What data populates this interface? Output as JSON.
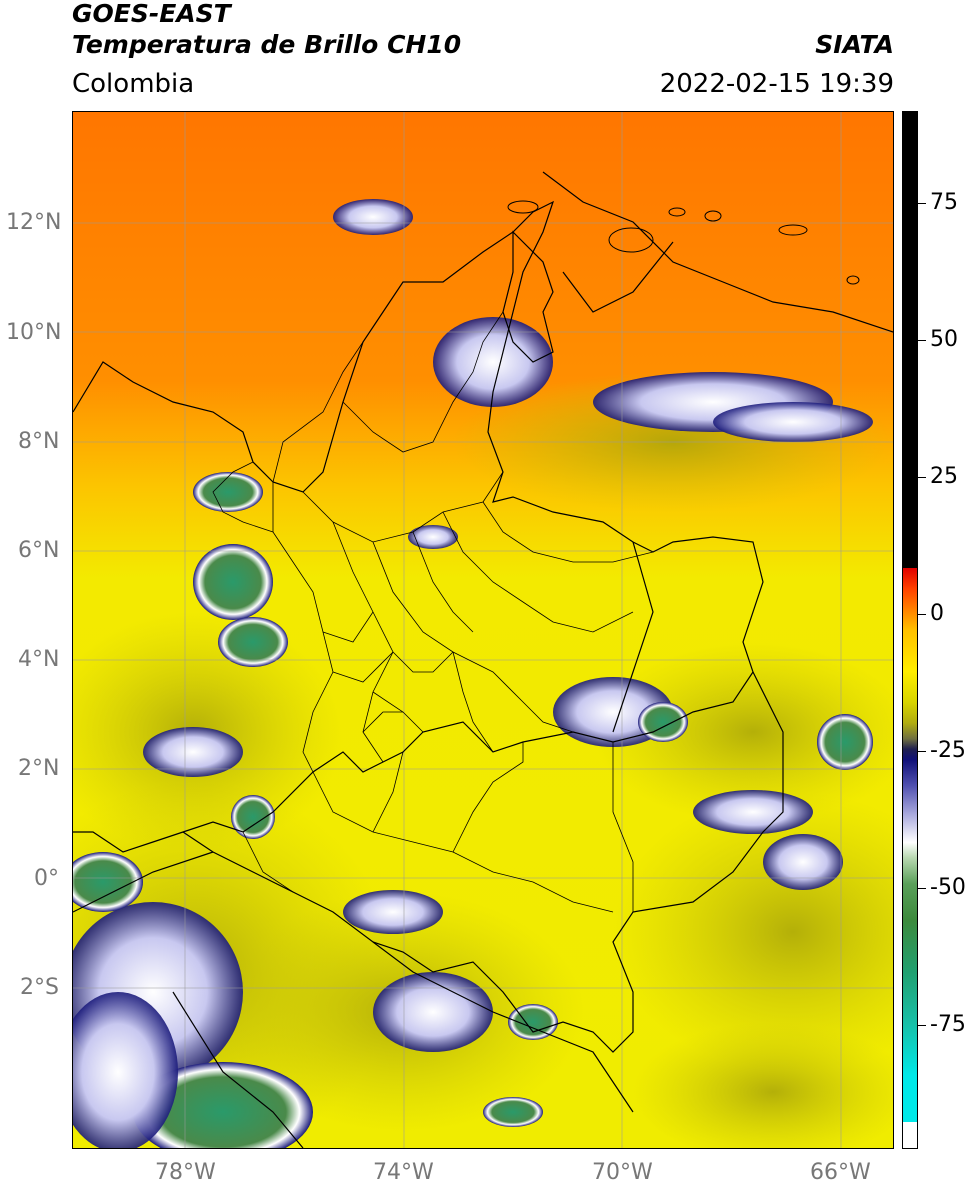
{
  "header": {
    "title_line1": "GOES-EAST",
    "title_line2": "Temperatura de Brillo CH10",
    "region": "Colombia",
    "organization": "SIATA",
    "datetime": "2022-02-15 19:39"
  },
  "axes": {
    "lat_labels": [
      "12°N",
      "10°N",
      "8°N",
      "6°N",
      "4°N",
      "2°N",
      "0°",
      "2°S"
    ],
    "lon_labels": [
      "78°W",
      "74°W",
      "70°W",
      "66°W"
    ]
  },
  "colorbar": {
    "labels": [
      "75",
      "50",
      "25",
      "0",
      "-25",
      "-50",
      "-75"
    ],
    "values": [
      75,
      50,
      25,
      0,
      -25,
      -50,
      -75
    ],
    "range": [
      -95,
      95
    ]
  },
  "colors": {
    "warm_orange": "#ff7a00",
    "yellow": "#f2ef00",
    "olive": "#b6b20a",
    "navy": "#1a1a7a",
    "green": "#3c8c3c",
    "teal": "#18b890",
    "black": "#000000"
  }
}
